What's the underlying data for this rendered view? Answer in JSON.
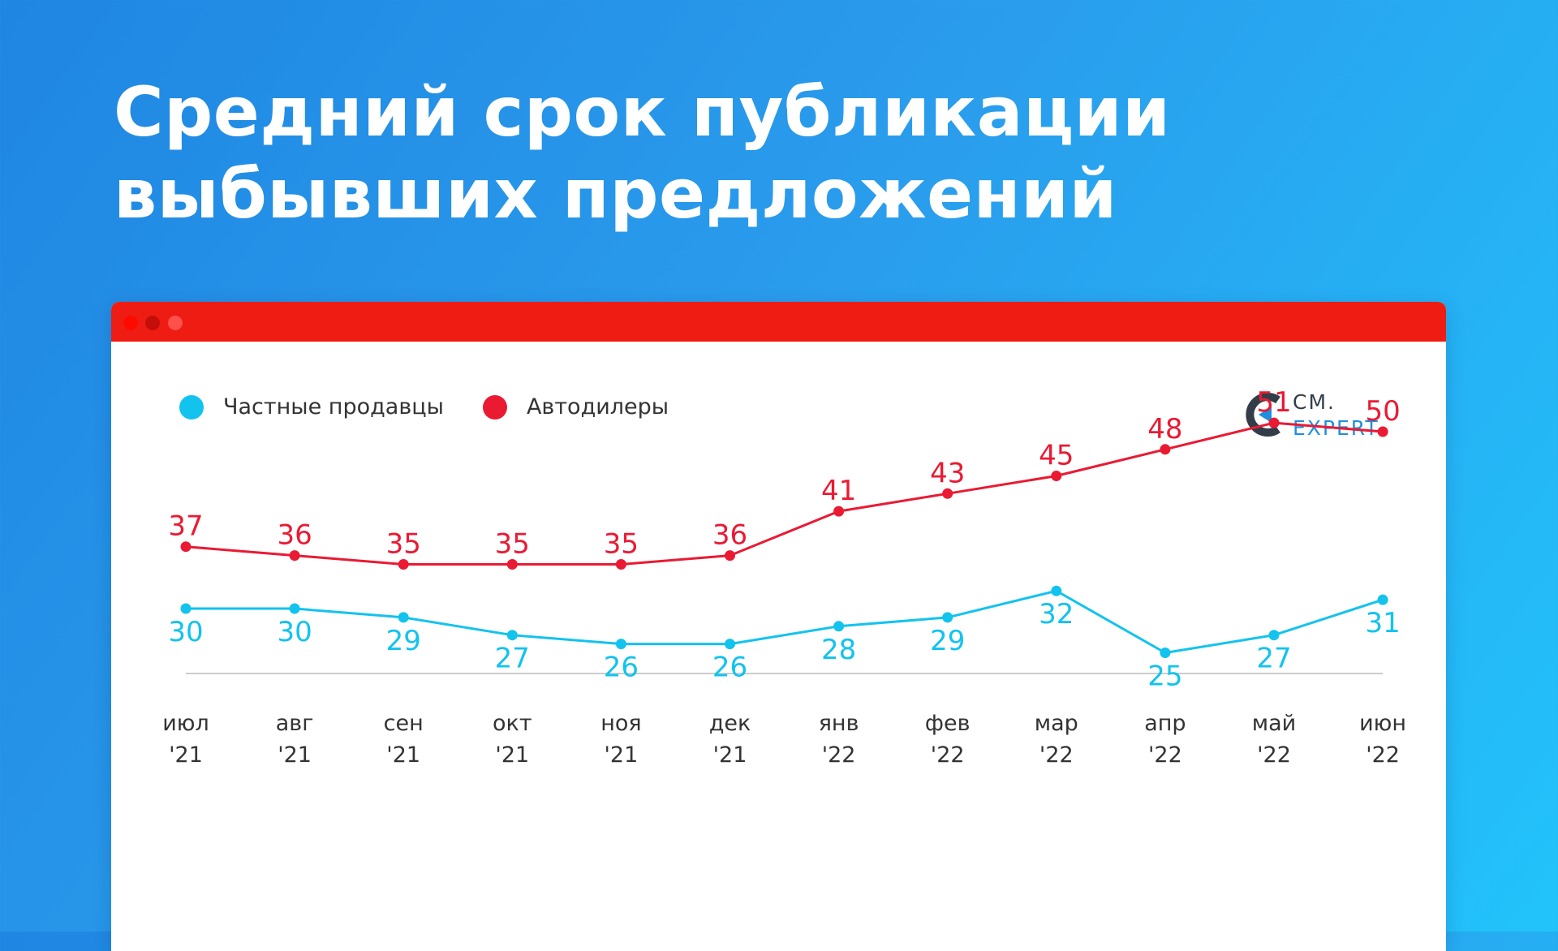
{
  "title": {
    "line1": "Средний срок публикации",
    "line2": "выбывших предложений"
  },
  "logo": {
    "top": "СМ.",
    "bottom": "EXPERT"
  },
  "colors": {
    "private": "#12c3ee",
    "dealers": "#ea1a33",
    "axis": "#cccccc",
    "ticks": "#333333",
    "titlebar": "#ee1c12"
  },
  "chart_data": {
    "type": "line",
    "categories": [
      [
        "июл",
        "'21"
      ],
      [
        "авг",
        "'21"
      ],
      [
        "сен",
        "'21"
      ],
      [
        "окт",
        "'21"
      ],
      [
        "ноя",
        "'21"
      ],
      [
        "дек",
        "'21"
      ],
      [
        "янв",
        "'22"
      ],
      [
        "фев",
        "'22"
      ],
      [
        "мар",
        "'22"
      ],
      [
        "апр",
        "'22"
      ],
      [
        "май",
        "'22"
      ],
      [
        "июн",
        "'22"
      ]
    ],
    "series": [
      {
        "name": "Частные продавцы",
        "color": "#12c3ee",
        "label_position": "below",
        "values": [
          30,
          30,
          29,
          27,
          26,
          26,
          28,
          29,
          32,
          25,
          27,
          31
        ]
      },
      {
        "name": "Автодилеры",
        "color": "#ea1a33",
        "label_position": "above",
        "values": [
          37,
          36,
          35,
          35,
          35,
          36,
          41,
          43,
          45,
          48,
          51,
          50
        ]
      }
    ],
    "legend_position": "top-left",
    "grid": false,
    "y_axis_visible": false,
    "data_labels": true
  }
}
